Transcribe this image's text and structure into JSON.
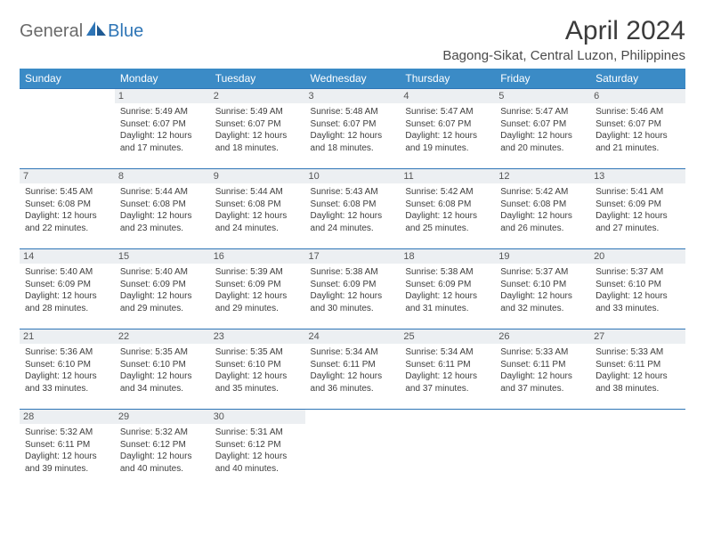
{
  "brand": {
    "part1": "General",
    "part2": "Blue"
  },
  "title": "April 2024",
  "location": "Bagong-Sikat, Central Luzon, Philippines",
  "colors": {
    "header_bg": "#3b8bc6",
    "header_text": "#ffffff",
    "row_border": "#2e75b6",
    "daynum_bg": "#eceff2",
    "logo_gray": "#6a6a6a",
    "logo_blue": "#2e75b6",
    "background": "#ffffff",
    "body_text": "#3d3d3d"
  },
  "typography": {
    "title_fontsize": 30,
    "location_fontsize": 15,
    "header_fontsize": 12,
    "daynum_fontsize": 11,
    "dayinfo_fontsize": 10
  },
  "layout": {
    "first_day_column": 1,
    "columns": 7,
    "rows": 5
  },
  "weekdays": [
    "Sunday",
    "Monday",
    "Tuesday",
    "Wednesday",
    "Thursday",
    "Friday",
    "Saturday"
  ],
  "days": [
    {
      "n": 1,
      "sunrise": "5:49 AM",
      "sunset": "6:07 PM",
      "daylight": "12 hours and 17 minutes."
    },
    {
      "n": 2,
      "sunrise": "5:49 AM",
      "sunset": "6:07 PM",
      "daylight": "12 hours and 18 minutes."
    },
    {
      "n": 3,
      "sunrise": "5:48 AM",
      "sunset": "6:07 PM",
      "daylight": "12 hours and 18 minutes."
    },
    {
      "n": 4,
      "sunrise": "5:47 AM",
      "sunset": "6:07 PM",
      "daylight": "12 hours and 19 minutes."
    },
    {
      "n": 5,
      "sunrise": "5:47 AM",
      "sunset": "6:07 PM",
      "daylight": "12 hours and 20 minutes."
    },
    {
      "n": 6,
      "sunrise": "5:46 AM",
      "sunset": "6:07 PM",
      "daylight": "12 hours and 21 minutes."
    },
    {
      "n": 7,
      "sunrise": "5:45 AM",
      "sunset": "6:08 PM",
      "daylight": "12 hours and 22 minutes."
    },
    {
      "n": 8,
      "sunrise": "5:44 AM",
      "sunset": "6:08 PM",
      "daylight": "12 hours and 23 minutes."
    },
    {
      "n": 9,
      "sunrise": "5:44 AM",
      "sunset": "6:08 PM",
      "daylight": "12 hours and 24 minutes."
    },
    {
      "n": 10,
      "sunrise": "5:43 AM",
      "sunset": "6:08 PM",
      "daylight": "12 hours and 24 minutes."
    },
    {
      "n": 11,
      "sunrise": "5:42 AM",
      "sunset": "6:08 PM",
      "daylight": "12 hours and 25 minutes."
    },
    {
      "n": 12,
      "sunrise": "5:42 AM",
      "sunset": "6:08 PM",
      "daylight": "12 hours and 26 minutes."
    },
    {
      "n": 13,
      "sunrise": "5:41 AM",
      "sunset": "6:09 PM",
      "daylight": "12 hours and 27 minutes."
    },
    {
      "n": 14,
      "sunrise": "5:40 AM",
      "sunset": "6:09 PM",
      "daylight": "12 hours and 28 minutes."
    },
    {
      "n": 15,
      "sunrise": "5:40 AM",
      "sunset": "6:09 PM",
      "daylight": "12 hours and 29 minutes."
    },
    {
      "n": 16,
      "sunrise": "5:39 AM",
      "sunset": "6:09 PM",
      "daylight": "12 hours and 29 minutes."
    },
    {
      "n": 17,
      "sunrise": "5:38 AM",
      "sunset": "6:09 PM",
      "daylight": "12 hours and 30 minutes."
    },
    {
      "n": 18,
      "sunrise": "5:38 AM",
      "sunset": "6:09 PM",
      "daylight": "12 hours and 31 minutes."
    },
    {
      "n": 19,
      "sunrise": "5:37 AM",
      "sunset": "6:10 PM",
      "daylight": "12 hours and 32 minutes."
    },
    {
      "n": 20,
      "sunrise": "5:37 AM",
      "sunset": "6:10 PM",
      "daylight": "12 hours and 33 minutes."
    },
    {
      "n": 21,
      "sunrise": "5:36 AM",
      "sunset": "6:10 PM",
      "daylight": "12 hours and 33 minutes."
    },
    {
      "n": 22,
      "sunrise": "5:35 AM",
      "sunset": "6:10 PM",
      "daylight": "12 hours and 34 minutes."
    },
    {
      "n": 23,
      "sunrise": "5:35 AM",
      "sunset": "6:10 PM",
      "daylight": "12 hours and 35 minutes."
    },
    {
      "n": 24,
      "sunrise": "5:34 AM",
      "sunset": "6:11 PM",
      "daylight": "12 hours and 36 minutes."
    },
    {
      "n": 25,
      "sunrise": "5:34 AM",
      "sunset": "6:11 PM",
      "daylight": "12 hours and 37 minutes."
    },
    {
      "n": 26,
      "sunrise": "5:33 AM",
      "sunset": "6:11 PM",
      "daylight": "12 hours and 37 minutes."
    },
    {
      "n": 27,
      "sunrise": "5:33 AM",
      "sunset": "6:11 PM",
      "daylight": "12 hours and 38 minutes."
    },
    {
      "n": 28,
      "sunrise": "5:32 AM",
      "sunset": "6:11 PM",
      "daylight": "12 hours and 39 minutes."
    },
    {
      "n": 29,
      "sunrise": "5:32 AM",
      "sunset": "6:12 PM",
      "daylight": "12 hours and 40 minutes."
    },
    {
      "n": 30,
      "sunrise": "5:31 AM",
      "sunset": "6:12 PM",
      "daylight": "12 hours and 40 minutes."
    }
  ],
  "labels": {
    "sunrise": "Sunrise:",
    "sunset": "Sunset:",
    "daylight": "Daylight:"
  }
}
